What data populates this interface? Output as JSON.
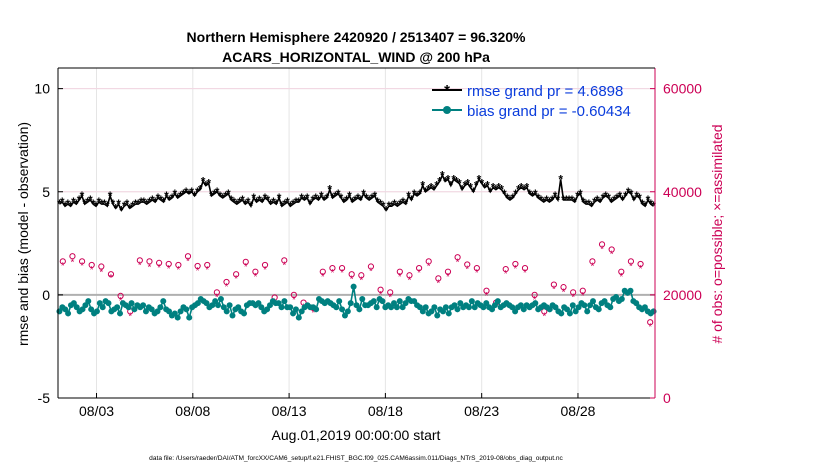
{
  "chart_data": {
    "type": "line",
    "title_line1": "Northern Hemisphere 2420920 / 2513407 = 96.320%",
    "title_line2": "ACARS_HORIZONTAL_WIND @ 200 hPa",
    "ylabel_left": "rmse and bias (model - observation)",
    "ylabel_right": "# of obs: o=possible; ×=assimilated",
    "xlabel": "Aug.01,2019 00:00:00 start",
    "footer": "data file: /Users/raeder/DAI/ATM_forcXX/CAM6_setup/f.e21.FHIST_BGC.f09_025.CAM6assim.011/Diags_NTrS_2019-08/obs_diag_output.nc",
    "x_ticks": [
      "08/03",
      "08/08",
      "08/13",
      "08/18",
      "08/23",
      "08/28"
    ],
    "x_tick_days": [
      3,
      8,
      13,
      18,
      23,
      28
    ],
    "xlim_days": [
      1,
      32
    ],
    "ylim_left": [
      -5,
      11
    ],
    "yticks_left": [
      -5,
      0,
      5,
      10
    ],
    "yticks_left_labels": [
      "-5",
      "0",
      "5",
      "10"
    ],
    "ylim_right": [
      0,
      64000
    ],
    "yticks_right": [
      0,
      20000,
      40000,
      60000
    ],
    "yticks_right_labels": [
      "0",
      "20000",
      "40000",
      "60000"
    ],
    "legend_rmse": "rmse grand pr = 4.6898",
    "legend_bias": "bias grand pr = -0.60434",
    "colors": {
      "rmse": "#000000",
      "bias": "#008080",
      "obs": "#cc0055",
      "legend_text": "#0a3cdc",
      "zero_line": "#b0b0b0",
      "grid": "#e5e5e5"
    },
    "series": [
      {
        "name": "rmse",
        "values": [
          4.4,
          4.5,
          4.3,
          4.4,
          4.3,
          4.5,
          4.4,
          4.6,
          4.8,
          4.4,
          4.5,
          4.6,
          4.4,
          4.3,
          4.5,
          4.4,
          4.4,
          4.3,
          4.8,
          4.4,
          4.2,
          4.4,
          4.1,
          4.3,
          4.4,
          4.2,
          4.3,
          4.4,
          4.4,
          4.5,
          4.5,
          4.4,
          4.5,
          4.6,
          4.5,
          4.7,
          4.6,
          4.5,
          4.8,
          4.6,
          4.7,
          4.9,
          4.7,
          4.8,
          4.9,
          5.0,
          4.9,
          5.0,
          4.8,
          5.0,
          5.1,
          5.5,
          5.3,
          5.4,
          4.8,
          4.9,
          5.0,
          4.8,
          4.7,
          4.8,
          4.9,
          4.6,
          4.5,
          4.4,
          4.5,
          4.6,
          4.4,
          4.5,
          4.3,
          4.7,
          4.5,
          4.6,
          4.5,
          4.7,
          4.6,
          4.4,
          4.5,
          4.4,
          4.7,
          4.3,
          4.4,
          4.5,
          4.3,
          4.4,
          4.5,
          4.5,
          4.7,
          4.6,
          4.7,
          4.4,
          4.6,
          4.7,
          4.6,
          4.8,
          4.6,
          4.7,
          5.1,
          4.7,
          4.8,
          4.9,
          4.7,
          4.5,
          4.6,
          4.8,
          4.5,
          4.6,
          4.7,
          4.6,
          4.9,
          4.7,
          4.6,
          4.7,
          4.8,
          4.5,
          4.4,
          4.3,
          4.1,
          4.3,
          4.3,
          4.4,
          4.3,
          4.4,
          4.5,
          4.4,
          4.8,
          4.6,
          4.9,
          4.8,
          4.9,
          5.3,
          5.0,
          5.1,
          5.2,
          5.1,
          5.3,
          5.5,
          5.8,
          5.5,
          5.6,
          5.3,
          5.6,
          5.5,
          5.4,
          5.1,
          5.3,
          5.4,
          5.2,
          5.0,
          5.3,
          5.6,
          5.4,
          5.2,
          5.3,
          5.0,
          5.2,
          5.1,
          5.2,
          5.1,
          4.9,
          4.7,
          4.6,
          4.7,
          4.9,
          5.1,
          5.2,
          5.1,
          5.2,
          4.9,
          4.8,
          4.9,
          4.7,
          4.6,
          4.5,
          4.6,
          4.5,
          4.6,
          4.8,
          4.6,
          5.6,
          4.6,
          4.6,
          4.6,
          4.6,
          4.5,
          4.8,
          4.9,
          4.5,
          4.4,
          4.4,
          4.3,
          4.5,
          4.6,
          4.5,
          4.7,
          4.8,
          4.7,
          4.5,
          4.6,
          4.7,
          4.8,
          4.6,
          4.8,
          5.0,
          4.9,
          4.6,
          4.8,
          4.7,
          4.4,
          4.3,
          4.6,
          4.4,
          4.3
        ]
      },
      {
        "name": "bias",
        "values": [
          -0.8,
          -0.6,
          -0.7,
          -0.9,
          -0.5,
          -0.4,
          -0.6,
          -0.8,
          -0.7,
          -0.5,
          -0.3,
          -0.7,
          -0.9,
          -0.8,
          -0.4,
          -0.6,
          -0.3,
          -0.4,
          -0.8,
          -0.7,
          -0.6,
          -0.9,
          -0.4,
          -0.5,
          -0.6,
          -0.4,
          -0.7,
          -0.5,
          -0.6,
          -0.5,
          -0.8,
          -0.6,
          -0.7,
          -0.9,
          -0.8,
          -0.6,
          -0.3,
          -0.7,
          -0.8,
          -1.0,
          -0.9,
          -1.1,
          -0.8,
          -0.6,
          -0.7,
          -1.1,
          -0.6,
          -0.5,
          -0.4,
          -0.2,
          -0.3,
          -0.4,
          -0.6,
          -0.5,
          -0.3,
          -0.5,
          -0.2,
          -0.6,
          -0.8,
          -0.5,
          -1.0,
          -0.7,
          -0.6,
          -0.8,
          -0.9,
          -0.5,
          -0.4,
          -0.4,
          -0.5,
          -0.4,
          -0.6,
          -0.8,
          -0.7,
          -0.5,
          -0.3,
          -0.4,
          -0.4,
          -0.6,
          -0.3,
          -0.6,
          -0.6,
          -0.9,
          -0.7,
          -1.1,
          -0.8,
          -0.6,
          -0.5,
          -0.6,
          -0.6,
          -0.7,
          -0.2,
          -0.3,
          -0.4,
          -0.3,
          -0.4,
          -0.5,
          -0.6,
          -0.3,
          -0.7,
          -1.0,
          -0.8,
          -0.4,
          0.4,
          -0.5,
          -0.7,
          -0.2,
          -0.5,
          -0.5,
          -0.4,
          -0.3,
          -0.6,
          -0.2,
          -0.3,
          -0.6,
          -0.5,
          -0.6,
          -0.4,
          -0.6,
          -0.3,
          -0.6,
          -0.4,
          -0.2,
          -0.3,
          -0.3,
          -0.5,
          -0.6,
          -0.8,
          -0.6,
          -0.9,
          -0.8,
          -0.6,
          -1.0,
          -0.7,
          -0.8,
          -0.6,
          -0.9,
          -0.6,
          -0.5,
          -0.7,
          -0.4,
          -0.6,
          -0.5,
          -0.6,
          -0.3,
          -0.6,
          -0.4,
          -0.5,
          -0.6,
          -0.4,
          -0.6,
          -0.7,
          -0.5,
          -0.3,
          -0.6,
          -0.5,
          -0.4,
          -0.5,
          -0.6,
          -0.8,
          -0.6,
          -0.5,
          -0.7,
          -0.5,
          -0.6,
          -0.5,
          -0.4,
          -0.7,
          -0.6,
          -0.5,
          -0.6,
          -0.7,
          -0.5,
          -0.6,
          -0.8,
          -0.9,
          -0.6,
          -0.7,
          -0.9,
          -0.5,
          -0.8,
          -0.6,
          -0.4,
          -0.5,
          -0.8,
          -0.5,
          -0.3,
          -0.6,
          -0.7,
          -0.4,
          -0.3,
          -0.5,
          -0.6,
          -0.2,
          -0.1,
          -0.3,
          -0.2,
          0.2,
          0.1,
          0.2,
          -0.3,
          -0.4,
          -0.6,
          -0.7,
          -0.6,
          -0.8,
          -0.9,
          -0.8
        ]
      }
    ],
    "obs_points_days": [
      1.25,
      1.75,
      2.25,
      2.75,
      3.25,
      3.75,
      4.25,
      4.75,
      5.25,
      5.75,
      6.25,
      6.75,
      7.25,
      7.75,
      8.25,
      8.75,
      9.25,
      9.75,
      10.25,
      10.75,
      11.25,
      11.75,
      12.25,
      12.75,
      13.25,
      13.75,
      14.25,
      14.75,
      15.25,
      15.75,
      16.25,
      16.75,
      17.25,
      17.75,
      18.25,
      18.75,
      19.25,
      19.75,
      20.25,
      20.75,
      21.25,
      21.75,
      22.25,
      22.75,
      23.25,
      23.75,
      24.25,
      24.75,
      25.25,
      25.75,
      26.25,
      26.75,
      27.25,
      27.75,
      28.25,
      28.75,
      29.25,
      29.75,
      30.25,
      30.75,
      31.25,
      31.75
    ],
    "obs_possible": [
      26500,
      27500,
      26500,
      25800,
      25500,
      24000,
      19800,
      16800,
      26700,
      26500,
      26200,
      26000,
      25800,
      27500,
      25600,
      25800,
      20500,
      22500,
      24000,
      26400,
      24500,
      25800,
      19500,
      26700,
      20000,
      18500,
      17500,
      24500,
      25200,
      25200,
      24000,
      23800,
      25500,
      21000,
      20500,
      24500,
      23800,
      25200,
      26500,
      23200,
      24500,
      27300,
      25900,
      25200,
      20800,
      18500,
      25000,
      26000,
      25200,
      20000,
      16800,
      22000,
      21500,
      20500,
      20800,
      26500,
      29800,
      28800,
      24500,
      26500,
      26000,
      14700
    ],
    "obs_assimilated": [
      25800,
      26500,
      25800,
      25000,
      24500,
      23500,
      19000,
      16000,
      25900,
      25500,
      25400,
      25200,
      25000,
      26700,
      24800,
      25000,
      19700,
      21700,
      23300,
      25600,
      23700,
      25000,
      18700,
      25900,
      19200,
      17700,
      16700,
      23700,
      24400,
      24400,
      23200,
      23000,
      24700,
      20200,
      19700,
      23700,
      23000,
      24400,
      25700,
      22400,
      23700,
      26500,
      25100,
      24400,
      20000,
      17700,
      24200,
      25200,
      24400,
      19200,
      16000,
      21200,
      20700,
      19700,
      20000,
      25700,
      29000,
      28000,
      23700,
      25700,
      25200,
      14000
    ]
  }
}
